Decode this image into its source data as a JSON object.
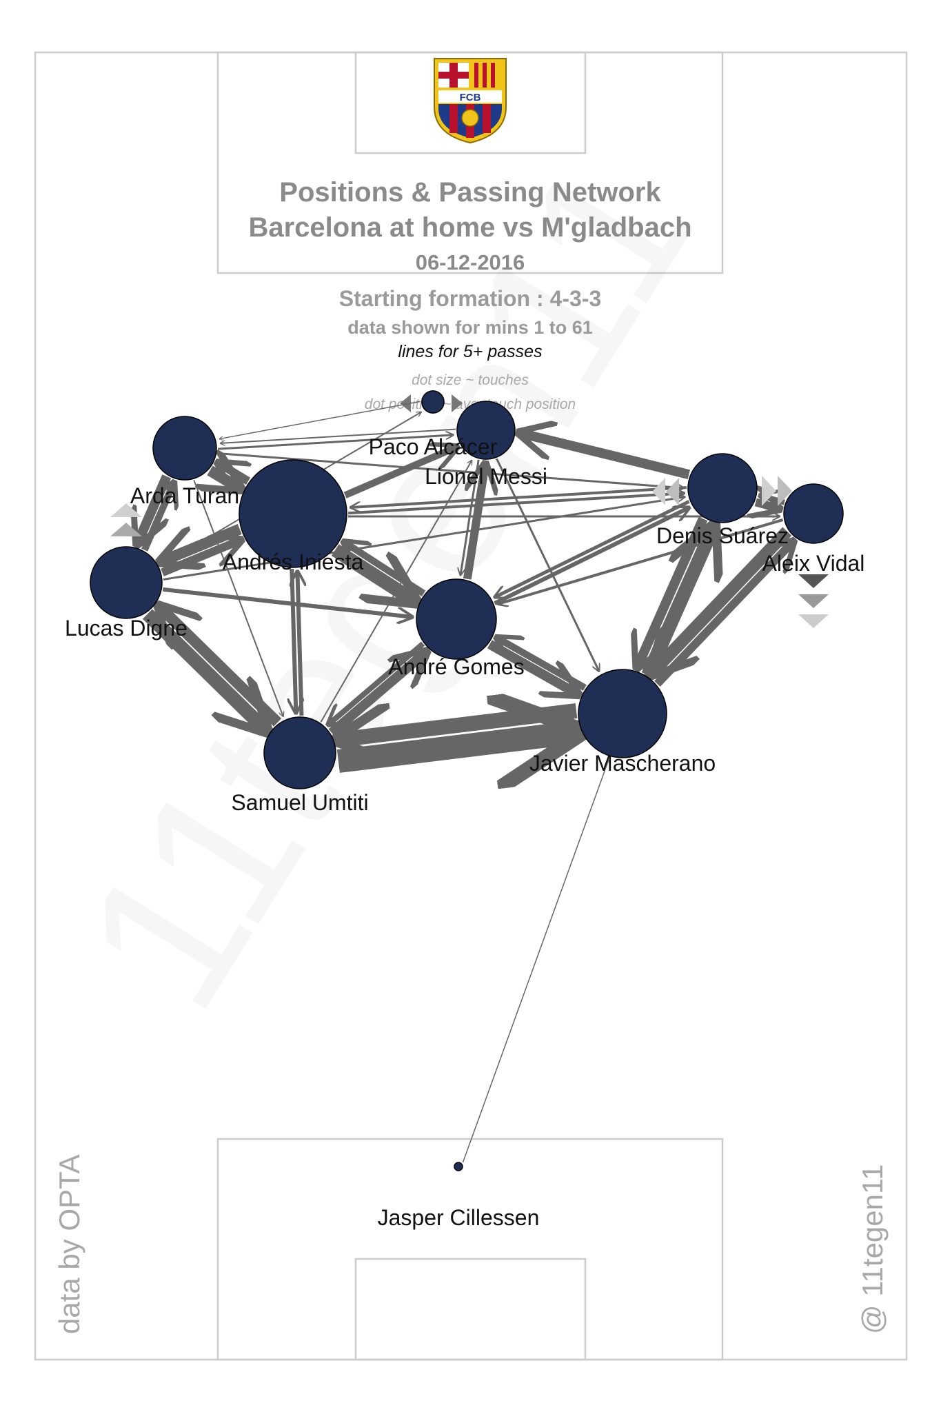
{
  "header": {
    "title_line1": "Positions & Passing Network",
    "title_line2": "Barcelona at home vs M'gladbach",
    "date": "06-12-2016",
    "formation": "Starting formation : 4-3-3",
    "minutes": "data shown for mins 1 to 61",
    "lines_note": "lines for 5+ passes",
    "dot_size_note": "dot size ~ touches",
    "dot_position_note": "dot position ~ avg. touch position"
  },
  "crest": {
    "text": "FCB",
    "colors": {
      "blue": "#1e3a8a",
      "red": "#b8122d",
      "gold": "#f0c419"
    }
  },
  "credits": {
    "source": "data by OPTA",
    "author": "@ 11tegen11"
  },
  "watermark": "11tegen11",
  "colors": {
    "node": "#1f2e54",
    "pass": "#666666",
    "pitch_line": "#cccccc",
    "title": "#8a8a8a"
  },
  "players": [
    {
      "id": "turan",
      "name": "Arda Turan"
    },
    {
      "id": "iniesta",
      "name": "Andrés Iniesta"
    },
    {
      "id": "digne",
      "name": "Lucas Digne"
    },
    {
      "id": "messi",
      "name": "Lionel Messi"
    },
    {
      "id": "alcacer",
      "name": "Paco Alcácer"
    },
    {
      "id": "suarez",
      "name": "Denis Suárez"
    },
    {
      "id": "vidal",
      "name": "Aleix Vidal"
    },
    {
      "id": "gomes",
      "name": "André Gomes"
    },
    {
      "id": "mascherano",
      "name": "Javier Mascherano"
    },
    {
      "id": "umtiti",
      "name": "Samuel Umtiti"
    },
    {
      "id": "cillessen",
      "name": "Jasper Cillessen"
    }
  ]
}
